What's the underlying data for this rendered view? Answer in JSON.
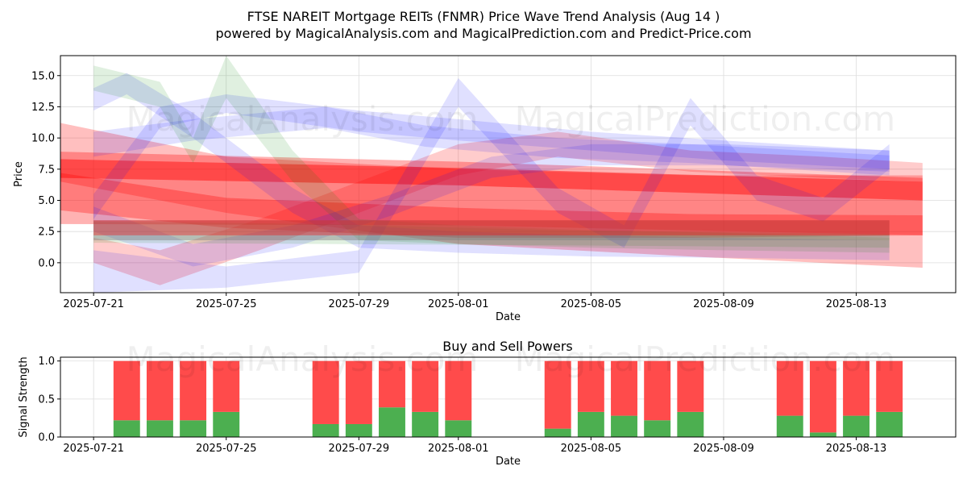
{
  "header": {
    "title_line1": "FTSE NAREIT Mortgage REITs (FNMR) Price Wave Trend Analysis (Aug 14 )",
    "title_line2": "powered by MagicalAnalysis.com and MagicalPrediction.com and Predict-Price.com"
  },
  "watermarks": [
    "MagicalAnalysis.com",
    "MagicalPrediction.com"
  ],
  "chart_data": [
    {
      "type": "area",
      "xlabel": "Date",
      "ylabel": "Price",
      "xlim": [
        "2025-07-20",
        "2025-08-16"
      ],
      "ylim": [
        -2.4,
        16.6
      ],
      "x_ticks": [
        "2025-07-21",
        "2025-07-25",
        "2025-07-29",
        "2025-08-01",
        "2025-08-05",
        "2025-08-09",
        "2025-08-13"
      ],
      "y_ticks": [
        0.0,
        2.5,
        5.0,
        7.5,
        10.0,
        12.5,
        15.0
      ],
      "grid": true,
      "bands": [
        {
          "color": "#ff0000",
          "opacity": 0.25,
          "upper": [
            [
              "2025-07-20",
              11.2
            ],
            [
              "2025-07-25",
              8.5
            ],
            [
              "2025-08-01",
              7.5
            ],
            [
              "2025-08-08",
              7.0
            ],
            [
              "2025-08-15",
              7.0
            ]
          ],
          "lower": [
            [
              "2025-07-20",
              6.5
            ],
            [
              "2025-07-25",
              4.0
            ],
            [
              "2025-08-01",
              1.5
            ],
            [
              "2025-08-08",
              0.5
            ],
            [
              "2025-08-15",
              -0.4
            ]
          ]
        },
        {
          "color": "#ff0000",
          "opacity": 0.3,
          "upper": [
            [
              "2025-07-20",
              8.9
            ],
            [
              "2025-08-01",
              8.1
            ],
            [
              "2025-08-15",
              6.8
            ]
          ],
          "lower": [
            [
              "2025-07-20",
              3.1
            ],
            [
              "2025-08-01",
              3.0
            ],
            [
              "2025-08-15",
              2.2
            ]
          ]
        },
        {
          "color": "#ff0000",
          "opacity": 0.45,
          "upper": [
            [
              "2025-07-20",
              8.3
            ],
            [
              "2025-08-01",
              7.6
            ],
            [
              "2025-08-15",
              6.5
            ]
          ],
          "lower": [
            [
              "2025-07-20",
              6.8
            ],
            [
              "2025-08-01",
              6.2
            ],
            [
              "2025-08-15",
              5.0
            ]
          ]
        },
        {
          "color": "#ff0000",
          "opacity": 0.3,
          "upper": [
            [
              "2025-07-20",
              7.2
            ],
            [
              "2025-07-25",
              5.2
            ],
            [
              "2025-08-01",
              4.4
            ],
            [
              "2025-08-08",
              3.9
            ],
            [
              "2025-08-15",
              3.8
            ]
          ],
          "lower": [
            [
              "2025-07-20",
              4.2
            ],
            [
              "2025-07-25",
              2.8
            ],
            [
              "2025-08-01",
              2.0
            ],
            [
              "2025-08-08",
              2.0
            ],
            [
              "2025-08-15",
              2.2
            ]
          ]
        },
        {
          "color": "#ff0000",
          "opacity": 0.2,
          "upper": [
            [
              "2025-07-21",
              2.0
            ],
            [
              "2025-07-23",
              1.0
            ],
            [
              "2025-07-26",
              3.5
            ],
            [
              "2025-07-29",
              6.5
            ],
            [
              "2025-08-01",
              9.5
            ],
            [
              "2025-08-04",
              10.5
            ],
            [
              "2025-08-08",
              9.0
            ],
            [
              "2025-08-12",
              8.5
            ],
            [
              "2025-08-15",
              8.0
            ]
          ],
          "lower": [
            [
              "2025-07-21",
              0.0
            ],
            [
              "2025-07-23",
              -1.8
            ],
            [
              "2025-07-26",
              1.0
            ],
            [
              "2025-07-29",
              4.0
            ],
            [
              "2025-08-01",
              7.0
            ],
            [
              "2025-08-04",
              8.5
            ],
            [
              "2025-08-08",
              7.3
            ],
            [
              "2025-08-12",
              6.8
            ],
            [
              "2025-08-15",
              6.5
            ]
          ]
        },
        {
          "color": "#0000ff",
          "opacity": 0.12,
          "upper": [
            [
              "2025-07-21",
              14.0
            ],
            [
              "2025-07-22",
              15.2
            ],
            [
              "2025-07-24",
              12.0
            ],
            [
              "2025-07-27",
              6.0
            ],
            [
              "2025-07-29",
              3.0
            ],
            [
              "2025-08-01",
              2.5
            ],
            [
              "2025-08-05",
              2.2
            ],
            [
              "2025-08-09",
              2.0
            ],
            [
              "2025-08-14",
              1.8
            ]
          ],
          "lower": [
            [
              "2025-07-21",
              12.2
            ],
            [
              "2025-07-22",
              13.5
            ],
            [
              "2025-07-24",
              10.0
            ],
            [
              "2025-07-27",
              4.0
            ],
            [
              "2025-07-29",
              1.2
            ],
            [
              "2025-08-01",
              0.8
            ],
            [
              "2025-08-05",
              0.5
            ],
            [
              "2025-08-09",
              0.4
            ],
            [
              "2025-08-14",
              0.2
            ]
          ]
        },
        {
          "color": "#0000ff",
          "opacity": 0.12,
          "upper": [
            [
              "2025-07-21",
              5.5
            ],
            [
              "2025-07-23",
              12.5
            ],
            [
              "2025-07-25",
              13.5
            ],
            [
              "2025-07-29",
              12.2
            ],
            [
              "2025-08-01",
              11.5
            ],
            [
              "2025-08-05",
              10.5
            ],
            [
              "2025-08-09",
              9.8
            ],
            [
              "2025-08-14",
              9.0
            ]
          ],
          "lower": [
            [
              "2025-07-21",
              3.5
            ],
            [
              "2025-07-23",
              10.8
            ],
            [
              "2025-07-25",
              12.0
            ],
            [
              "2025-07-29",
              10.5
            ],
            [
              "2025-08-01",
              9.8
            ],
            [
              "2025-08-05",
              9.0
            ],
            [
              "2025-08-09",
              8.2
            ],
            [
              "2025-08-14",
              7.5
            ]
          ]
        },
        {
          "color": "#0000ff",
          "opacity": 0.12,
          "upper": [
            [
              "2025-07-21",
              1.0
            ],
            [
              "2025-07-25",
              -0.3
            ],
            [
              "2025-07-29",
              1.0
            ],
            [
              "2025-08-01",
              14.8
            ],
            [
              "2025-08-04",
              6.0
            ],
            [
              "2025-08-06",
              3.0
            ],
            [
              "2025-08-08",
              13.2
            ],
            [
              "2025-08-10",
              7.0
            ],
            [
              "2025-08-12",
              5.2
            ],
            [
              "2025-08-14",
              9.5
            ]
          ],
          "lower": [
            [
              "2025-07-21",
              -2.4
            ],
            [
              "2025-07-25",
              -2.0
            ],
            [
              "2025-07-29",
              -0.8
            ],
            [
              "2025-08-01",
              12.5
            ],
            [
              "2025-08-04",
              4.0
            ],
            [
              "2025-08-06",
              1.2
            ],
            [
              "2025-08-08",
              11.0
            ],
            [
              "2025-08-10",
              5.0
            ],
            [
              "2025-08-12",
              3.3
            ],
            [
              "2025-08-14",
              7.5
            ]
          ]
        },
        {
          "color": "#0000ff",
          "opacity": 0.12,
          "upper": [
            [
              "2025-07-21",
              4.5
            ],
            [
              "2025-07-24",
              1.5
            ],
            [
              "2025-07-27",
              3.0
            ],
            [
              "2025-07-30",
              5.5
            ],
            [
              "2025-08-02",
              8.5
            ],
            [
              "2025-08-05",
              9.5
            ],
            [
              "2025-08-09",
              9.5
            ],
            [
              "2025-08-14",
              9.0
            ]
          ],
          "lower": [
            [
              "2025-07-21",
              2.5
            ],
            [
              "2025-07-24",
              -0.3
            ],
            [
              "2025-07-27",
              1.2
            ],
            [
              "2025-07-30",
              3.8
            ],
            [
              "2025-08-02",
              6.8
            ],
            [
              "2025-08-05",
              7.8
            ],
            [
              "2025-08-09",
              7.8
            ],
            [
              "2025-08-14",
              7.3
            ]
          ]
        },
        {
          "color": "#0000ff",
          "opacity": 0.12,
          "upper": [
            [
              "2025-07-21",
              10.5
            ],
            [
              "2025-07-24",
              11.5
            ],
            [
              "2025-07-28",
              12.5
            ],
            [
              "2025-07-31",
              11.0
            ],
            [
              "2025-08-04",
              10.0
            ],
            [
              "2025-08-08",
              9.5
            ],
            [
              "2025-08-14",
              8.6
            ]
          ],
          "lower": [
            [
              "2025-07-21",
              8.5
            ],
            [
              "2025-07-24",
              9.8
            ],
            [
              "2025-07-28",
              10.8
            ],
            [
              "2025-07-31",
              9.3
            ],
            [
              "2025-08-04",
              8.4
            ],
            [
              "2025-08-08",
              8.0
            ],
            [
              "2025-08-14",
              7.0
            ]
          ]
        },
        {
          "color": "#008000",
          "opacity": 0.12,
          "upper": [
            [
              "2025-07-21",
              15.8
            ],
            [
              "2025-07-23",
              14.5
            ],
            [
              "2025-07-24",
              10.0
            ],
            [
              "2025-07-25",
              16.6
            ],
            [
              "2025-07-27",
              9.0
            ],
            [
              "2025-07-29",
              3.5
            ],
            [
              "2025-08-01",
              3.0
            ],
            [
              "2025-08-05",
              2.6
            ],
            [
              "2025-08-09",
              2.4
            ],
            [
              "2025-08-14",
              2.0
            ]
          ],
          "lower": [
            [
              "2025-07-21",
              13.8
            ],
            [
              "2025-07-23",
              12.5
            ],
            [
              "2025-07-24",
              8.0
            ],
            [
              "2025-07-25",
              13.2
            ],
            [
              "2025-07-27",
              6.5
            ],
            [
              "2025-07-29",
              1.8
            ],
            [
              "2025-08-01",
              1.5
            ],
            [
              "2025-08-05",
              1.2
            ],
            [
              "2025-08-09",
              1.0
            ],
            [
              "2025-08-14",
              0.8
            ]
          ]
        },
        {
          "color": "#008000",
          "opacity": 0.12,
          "upper": [
            [
              "2025-07-21",
              3.3
            ],
            [
              "2025-07-28",
              3.1
            ],
            [
              "2025-08-04",
              2.6
            ],
            [
              "2025-08-14",
              2.3
            ]
          ],
          "lower": [
            [
              "2025-07-21",
              1.6
            ],
            [
              "2025-07-28",
              1.5
            ],
            [
              "2025-08-04",
              1.4
            ],
            [
              "2025-08-14",
              1.2
            ]
          ]
        },
        {
          "color": "#808080",
          "opacity": 0.45,
          "upper": [
            [
              "2025-07-21",
              3.4
            ],
            [
              "2025-08-14",
              3.4
            ]
          ],
          "lower": [
            [
              "2025-07-21",
              1.8
            ],
            [
              "2025-08-14",
              1.8
            ]
          ]
        },
        {
          "color": "#ff0000",
          "opacity": 0.35,
          "upper": [
            [
              "2025-07-21",
              3.4
            ],
            [
              "2025-08-14",
              3.4
            ]
          ],
          "lower": [
            [
              "2025-07-21",
              2.2
            ],
            [
              "2025-08-14",
              2.2
            ]
          ]
        }
      ]
    },
    {
      "type": "bar",
      "title": "Buy and Sell Powers",
      "xlabel": "Date",
      "ylabel": "Signal Strength",
      "xlim": [
        "2025-07-20",
        "2025-08-16"
      ],
      "ylim": [
        0,
        1.05
      ],
      "x_ticks": [
        "2025-07-21",
        "2025-07-25",
        "2025-07-29",
        "2025-08-01",
        "2025-08-05",
        "2025-08-09",
        "2025-08-13"
      ],
      "y_ticks": [
        0.0,
        0.5,
        1.0
      ],
      "grid": true,
      "categories": [
        "2025-07-22",
        "2025-07-23",
        "2025-07-24",
        "2025-07-25",
        "2025-07-28",
        "2025-07-29",
        "2025-07-30",
        "2025-07-31",
        "2025-08-01",
        "2025-08-04",
        "2025-08-05",
        "2025-08-06",
        "2025-08-07",
        "2025-08-08",
        "2025-08-11",
        "2025-08-12",
        "2025-08-13",
        "2025-08-14"
      ],
      "series": [
        {
          "color": "#4caf50",
          "values": [
            0.22,
            0.22,
            0.22,
            0.33,
            0.17,
            0.17,
            0.39,
            0.33,
            0.22,
            0.11,
            0.33,
            0.28,
            0.22,
            0.33,
            0.28,
            0.06,
            0.28,
            0.33
          ]
        },
        {
          "color": "#ff4b4b",
          "values": [
            0.78,
            0.78,
            0.78,
            0.67,
            0.83,
            0.83,
            0.61,
            0.67,
            0.78,
            0.89,
            0.67,
            0.72,
            0.78,
            0.67,
            0.72,
            0.94,
            0.72,
            0.67
          ]
        }
      ]
    }
  ]
}
